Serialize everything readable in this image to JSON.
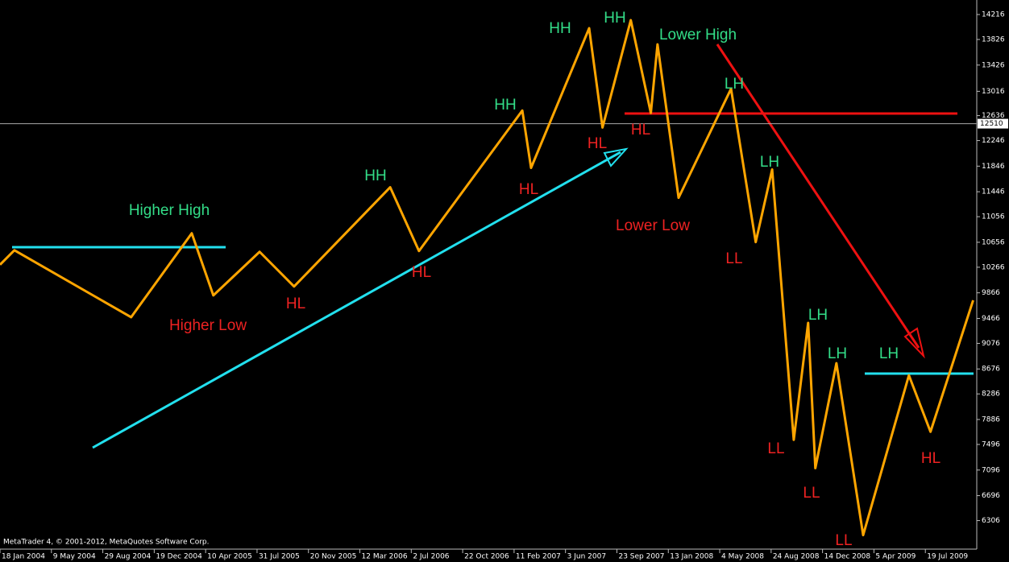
{
  "chart_data": {
    "type": "line",
    "x": [
      0,
      0.28,
      2.55,
      3.73,
      4.15,
      5.05,
      5.72,
      7.59,
      8.15,
      10.16,
      10.33,
      11.46,
      11.72,
      12.27,
      12.66,
      12.79,
      13.2,
      14.22,
      14.7,
      15.02,
      15.44,
      15.72,
      15.86,
      16.27,
      16.79,
      17.68,
      18.1,
      18.93
    ],
    "series": [
      {
        "color": "#ffa500",
        "values": [
          10305,
          10532,
          9485,
          10797,
          9826,
          10507,
          9965,
          11516,
          10520,
          12715,
          11819,
          14002,
          12450,
          14128,
          12677,
          13749,
          11352,
          13055,
          10659,
          11794,
          7568,
          9397,
          7126,
          8766,
          6079,
          8577,
          7694,
          9750
        ]
      }
    ],
    "xlim": [
      0,
      19
    ],
    "xticks": [
      {
        "value": 0,
        "label": "18 Jan 2004"
      },
      {
        "value": 1,
        "label": "9 May 2004"
      },
      {
        "value": 2,
        "label": "29 Aug 2004"
      },
      {
        "value": 3,
        "label": "19 Dec 2004"
      },
      {
        "value": 4,
        "label": "10 Apr 2005"
      },
      {
        "value": 5,
        "label": "31 Jul 2005"
      },
      {
        "value": 6,
        "label": "20 Nov 2005"
      },
      {
        "value": 7,
        "label": "12 Mar 2006"
      },
      {
        "value": 8,
        "label": "2 Jul 2006"
      },
      {
        "value": 9,
        "label": "22 Oct 2006"
      },
      {
        "value": 10,
        "label": "11 Feb 2007"
      },
      {
        "value": 11,
        "label": "3 Jun 2007"
      },
      {
        "value": 12,
        "label": "23 Sep 2007"
      },
      {
        "value": 13,
        "label": "13 Jan 2008"
      },
      {
        "value": 14,
        "label": "4 May 2008"
      },
      {
        "value": 15,
        "label": "24 Aug 2008"
      },
      {
        "value": 16,
        "label": "14 Dec 2008"
      },
      {
        "value": 17,
        "label": "5 Apr 2009"
      },
      {
        "value": 18,
        "label": "19 Jul 2009"
      }
    ],
    "ylim": [
      5860,
      14443
    ],
    "yticks": [
      14216,
      13826,
      13426,
      13016,
      12636,
      12246,
      11846,
      11446,
      11056,
      10656,
      10266,
      9866,
      9466,
      9076,
      8676,
      8286,
      7886,
      7496,
      7096,
      6696,
      6306
    ],
    "price_line": 12510,
    "annotations": [
      {
        "text": "Higher High",
        "color": "#33dd88"
      },
      {
        "text": "Higher Low",
        "color": "#ee2222"
      },
      {
        "text": "HL",
        "color": "#ee2222"
      },
      {
        "text": "HH",
        "color": "#33dd88"
      },
      {
        "text": "HL",
        "color": "#ee2222"
      },
      {
        "text": "HH",
        "color": "#33dd88"
      },
      {
        "text": "HL",
        "color": "#ee2222"
      },
      {
        "text": "HH",
        "color": "#33dd88"
      },
      {
        "text": "HL",
        "color": "#ee2222"
      },
      {
        "text": "HH",
        "color": "#33dd88"
      },
      {
        "text": "HL",
        "color": "#ee2222"
      },
      {
        "text": "Lower High",
        "color": "#33dd88"
      },
      {
        "text": "Lower Low",
        "color": "#ee2222"
      },
      {
        "text": "LH",
        "color": "#33dd88"
      },
      {
        "text": "LH",
        "color": "#33dd88"
      },
      {
        "text": "LL",
        "color": "#ee2222"
      },
      {
        "text": "LH",
        "color": "#33dd88"
      },
      {
        "text": "LH",
        "color": "#33dd88"
      },
      {
        "text": "LH",
        "color": "#33dd88"
      },
      {
        "text": "LL",
        "color": "#ee2222"
      },
      {
        "text": "LL",
        "color": "#ee2222"
      },
      {
        "text": "LL",
        "color": "#ee2222"
      },
      {
        "text": "HL",
        "color": "#ee2222"
      }
    ],
    "footer": "MetaTrader 4, © 2001-2012, MetaQuotes Software Corp."
  }
}
